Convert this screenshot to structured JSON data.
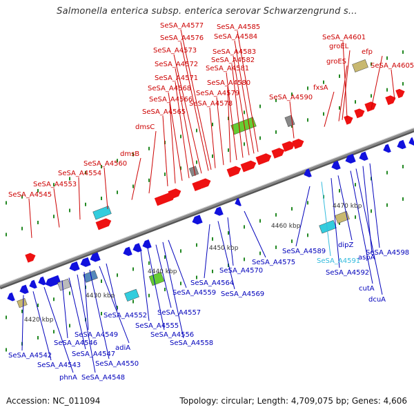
{
  "title": "Salmonella enterica subsp. enterica serovar Schwarzengrund s...",
  "accession": "Accession: NC_011094",
  "summary": "Topology: circular; Length: 4,709,075 bp; Genes: 4,606",
  "colors": {
    "forward": "#ee1111",
    "reverse": "#1111dd",
    "leader_red": "#cc0000",
    "leader_blue": "#0000bb",
    "highlight": "#33bbdd",
    "backbone": "#888888",
    "tick": "#228822"
  },
  "kbp_ticks": [
    "4420 kbp",
    "4430 kbp",
    "4440 kbp",
    "4450 kbp",
    "4460 kbp",
    "4470 kbp"
  ],
  "labels_top": [
    "SeSA_A4545",
    "SeSA_A4553",
    "SeSA_A4554",
    "SeSA_A4560",
    "dmsB",
    "dmsC",
    "SeSA_A4565",
    "SeSA_A4566",
    "SeSA_A4568",
    "SeSA_A4571",
    "SeSA_A4572",
    "SeSA_A4573",
    "SeSA_A4576",
    "SeSA_A4577",
    "SeSA_A4578",
    "SeSA_A4579",
    "SeSA_A4580",
    "SeSA_A4581",
    "SeSA_A4582",
    "SeSA_A4583",
    "SeSA_A4584",
    "SeSA_A4585",
    "SeSA_A4590",
    "fxsA",
    "groES",
    "groEL",
    "SeSA_A4601",
    "efp",
    "SeSA_A4605"
  ],
  "labels_bottom": [
    "SeSA_A4542",
    "SeSA_A4543",
    "phnA",
    "SeSA_A4546",
    "SeSA_A4547",
    "SeSA_A4548",
    "SeSA_A4549",
    "SeSA_A4550",
    "adiA",
    "SeSA_A4552",
    "SeSA_A4555",
    "SeSA_A4556",
    "SeSA_A4557",
    "SeSA_A4558",
    "SeSA_A4559",
    "SeSA_A4564",
    "SeSA_A4569",
    "SeSA_A4570",
    "SeSA_A4575",
    "SeSA_A4589",
    "SeSA_A4591",
    "SeSA_A4592",
    "dipZ",
    "cutA",
    "dcuA",
    "aspA",
    "SeSA_A4598"
  ]
}
